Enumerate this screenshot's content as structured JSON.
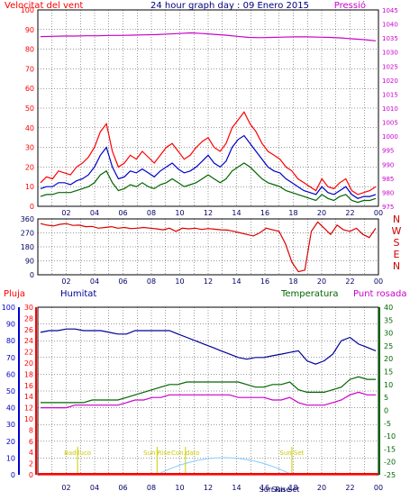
{
  "chart_data": [
    {
      "id": "wind-pressure",
      "type": "line",
      "title": "24 hour graph day : 09 Enero 2015",
      "left_label": "Velocitat del vent",
      "right_label": "Pressió",
      "x_ticks": [
        "02",
        "04",
        "06",
        "08",
        "10",
        "12",
        "14",
        "16",
        "18",
        "20",
        "22",
        "00"
      ],
      "y_left": {
        "min": 0,
        "max": 100,
        "ticks": [
          0,
          10,
          20,
          30,
          40,
          50,
          60,
          70,
          80,
          90,
          100
        ]
      },
      "y_right": {
        "min": 975,
        "max": 1045,
        "ticks": [
          975,
          980,
          985,
          990,
          995,
          1000,
          1005,
          1010,
          1015,
          1020,
          1025,
          1030,
          1035,
          1040,
          1045
        ]
      },
      "series": [
        {
          "key": "gust",
          "color": "#ff0000",
          "axis": "left",
          "values": [
            12,
            15,
            14,
            18,
            17,
            16,
            20,
            22,
            25,
            30,
            38,
            42,
            28,
            20,
            22,
            26,
            24,
            28,
            25,
            22,
            26,
            30,
            32,
            28,
            24,
            26,
            30,
            33,
            35,
            30,
            28,
            32,
            40,
            44,
            48,
            42,
            38,
            32,
            28,
            26,
            24,
            20,
            18,
            14,
            12,
            10,
            8,
            14,
            10,
            9,
            12,
            14,
            8,
            6,
            7,
            8,
            10
          ]
        },
        {
          "key": "avg",
          "color": "#0000cc",
          "axis": "left",
          "values": [
            9,
            10,
            10,
            12,
            12,
            11,
            13,
            14,
            16,
            20,
            26,
            30,
            20,
            14,
            15,
            18,
            17,
            19,
            17,
            15,
            18,
            20,
            22,
            19,
            17,
            18,
            20,
            23,
            26,
            22,
            20,
            23,
            30,
            34,
            36,
            32,
            28,
            24,
            20,
            18,
            17,
            14,
            12,
            10,
            8,
            7,
            6,
            10,
            7,
            6,
            8,
            10,
            6,
            4,
            5,
            5,
            6
          ]
        },
        {
          "key": "min",
          "color": "#006600",
          "axis": "left",
          "values": [
            5,
            6,
            6,
            7,
            7,
            7,
            8,
            9,
            10,
            12,
            16,
            18,
            12,
            8,
            9,
            11,
            10,
            12,
            10,
            9,
            11,
            12,
            14,
            12,
            10,
            11,
            12,
            14,
            16,
            14,
            12,
            14,
            18,
            20,
            22,
            20,
            17,
            14,
            12,
            11,
            10,
            8,
            7,
            6,
            5,
            4,
            3,
            6,
            4,
            3,
            5,
            6,
            3,
            2,
            3,
            3,
            4
          ]
        },
        {
          "key": "pressure",
          "color": "#cc00cc",
          "axis": "right",
          "values": [
            1035.5,
            1035.6,
            1035.7,
            1035.7,
            1035.8,
            1035.8,
            1035.9,
            1035.9,
            1036.0,
            1036.1,
            1036.2,
            1036.4,
            1036.6,
            1036.8,
            1036.6,
            1036.3,
            1036.0,
            1035.6,
            1035.2,
            1035.1,
            1035.2,
            1035.3,
            1035.4,
            1035.4,
            1035.3,
            1035.2,
            1035.0,
            1034.7,
            1034.4,
            1034.0
          ]
        }
      ]
    },
    {
      "id": "wind-direction",
      "type": "line",
      "y_ticks": [
        0,
        90,
        180,
        270,
        360
      ],
      "y_range": [
        0,
        360
      ],
      "cardinal_labels": [
        "N",
        "W",
        "S",
        "E",
        "N"
      ],
      "x_ticks": [
        "02",
        "04",
        "06",
        "08",
        "10",
        "12",
        "14",
        "16",
        "18",
        "20",
        "22",
        "00"
      ],
      "series": [
        {
          "key": "direction",
          "color": "#dd0000",
          "values": [
            330,
            320,
            315,
            325,
            330,
            318,
            320,
            310,
            312,
            300,
            305,
            310,
            300,
            305,
            298,
            300,
            305,
            300,
            296,
            290,
            300,
            280,
            300,
            296,
            300,
            292,
            298,
            294,
            290,
            288,
            280,
            270,
            260,
            250,
            270,
            300,
            290,
            280,
            200,
            80,
            20,
            30,
            280,
            340,
            300,
            260,
            320,
            290,
            280,
            300,
            260,
            240,
            300
          ]
        }
      ]
    },
    {
      "id": "temp-humidity-rain",
      "type": "line",
      "labels": {
        "rain": "Pluja",
        "humidity": "Humitat",
        "temperature": "Temperatura",
        "dewpoint": "Punt rosada"
      },
      "y_rain": {
        "min": 0,
        "max": 30,
        "ticks": [
          0,
          2,
          4,
          6,
          8,
          10,
          12,
          14,
          16,
          18,
          20,
          22,
          24,
          26,
          28,
          30
        ]
      },
      "y_humidity": {
        "min": 0,
        "max": 100,
        "ticks": [
          0,
          10,
          20,
          30,
          40,
          50,
          60,
          70,
          80,
          90,
          100
        ]
      },
      "y_temperature": {
        "min": -25,
        "max": 40,
        "ticks": [
          -25,
          -20,
          -15,
          -10,
          -5,
          0,
          5,
          10,
          15,
          20,
          25,
          30,
          35,
          40
        ]
      },
      "x_ticks": [
        "02",
        "04",
        "06",
        "08",
        "10",
        "12",
        "14",
        "16",
        "18",
        "20",
        "22",
        "00"
      ],
      "sun_markers": [
        {
          "label": "Badiluco",
          "hour": 2.8
        },
        {
          "label": "Sun Rise",
          "hour": 8.4
        },
        {
          "label": "Con.dato",
          "hour": 10.4
        },
        {
          "label": "Sun Set",
          "hour": 17.9
        }
      ],
      "bottom_labels": [
        "Sun Rise",
        "Sun Set"
      ],
      "series": [
        {
          "key": "humidity",
          "color": "#000099",
          "axis": "humidity",
          "values": [
            85,
            86,
            86,
            87,
            87,
            86,
            86,
            86,
            85,
            84,
            84,
            86,
            86,
            86,
            86,
            86,
            84,
            82,
            80,
            78,
            76,
            74,
            72,
            70,
            69,
            70,
            70,
            71,
            72,
            73,
            74,
            68,
            66,
            68,
            72,
            80,
            82,
            78,
            76,
            74
          ]
        },
        {
          "key": "temperature",
          "color": "#006600",
          "axis": "temperature",
          "values": [
            3,
            3,
            3,
            3,
            3,
            3,
            4,
            4,
            4,
            4,
            5,
            6,
            7,
            8,
            9,
            10,
            10,
            11,
            11,
            11,
            11,
            11,
            11,
            11,
            10,
            9,
            9,
            10,
            10,
            11,
            8,
            7,
            7,
            7,
            8,
            9,
            12,
            13,
            12,
            12
          ]
        },
        {
          "key": "dewpoint",
          "color": "#cc00cc",
          "axis": "temperature",
          "values": [
            1,
            1,
            1,
            1,
            2,
            2,
            2,
            2,
            2,
            2,
            3,
            4,
            4,
            5,
            5,
            6,
            6,
            6,
            6,
            6,
            6,
            6,
            6,
            5,
            5,
            5,
            5,
            4,
            4,
            5,
            3,
            2,
            2,
            2,
            3,
            4,
            6,
            7,
            6,
            6
          ]
        },
        {
          "key": "rain",
          "color": "#ff0000",
          "axis": "rain",
          "values": [
            0,
            0,
            0,
            0,
            0,
            0,
            0,
            0,
            0,
            0,
            0,
            0,
            0,
            0,
            0,
            0,
            0,
            0,
            0,
            0,
            0,
            0,
            0,
            0,
            0,
            0,
            0,
            0,
            0,
            0,
            0,
            0,
            0,
            0,
            0,
            0,
            0,
            0,
            0,
            0
          ]
        }
      ]
    }
  ],
  "bottom": {
    "sunrise": "Sun Rise",
    "sunset": "Sun Set"
  },
  "colors": {
    "frame_bg": "#ffffff",
    "grid": "#000000",
    "panel_border": "#000000",
    "gust": "#ff0000",
    "avg": "#0000cc",
    "min": "#006600",
    "pressure": "#cc00cc",
    "direction": "#dd0000",
    "humidity": "#000099",
    "temperature": "#006600",
    "dewpoint": "#cc00cc",
    "rain": "#ff0000",
    "sun_arc": "#88ccff",
    "sun_text": "#cccc00",
    "title": "#000080"
  }
}
